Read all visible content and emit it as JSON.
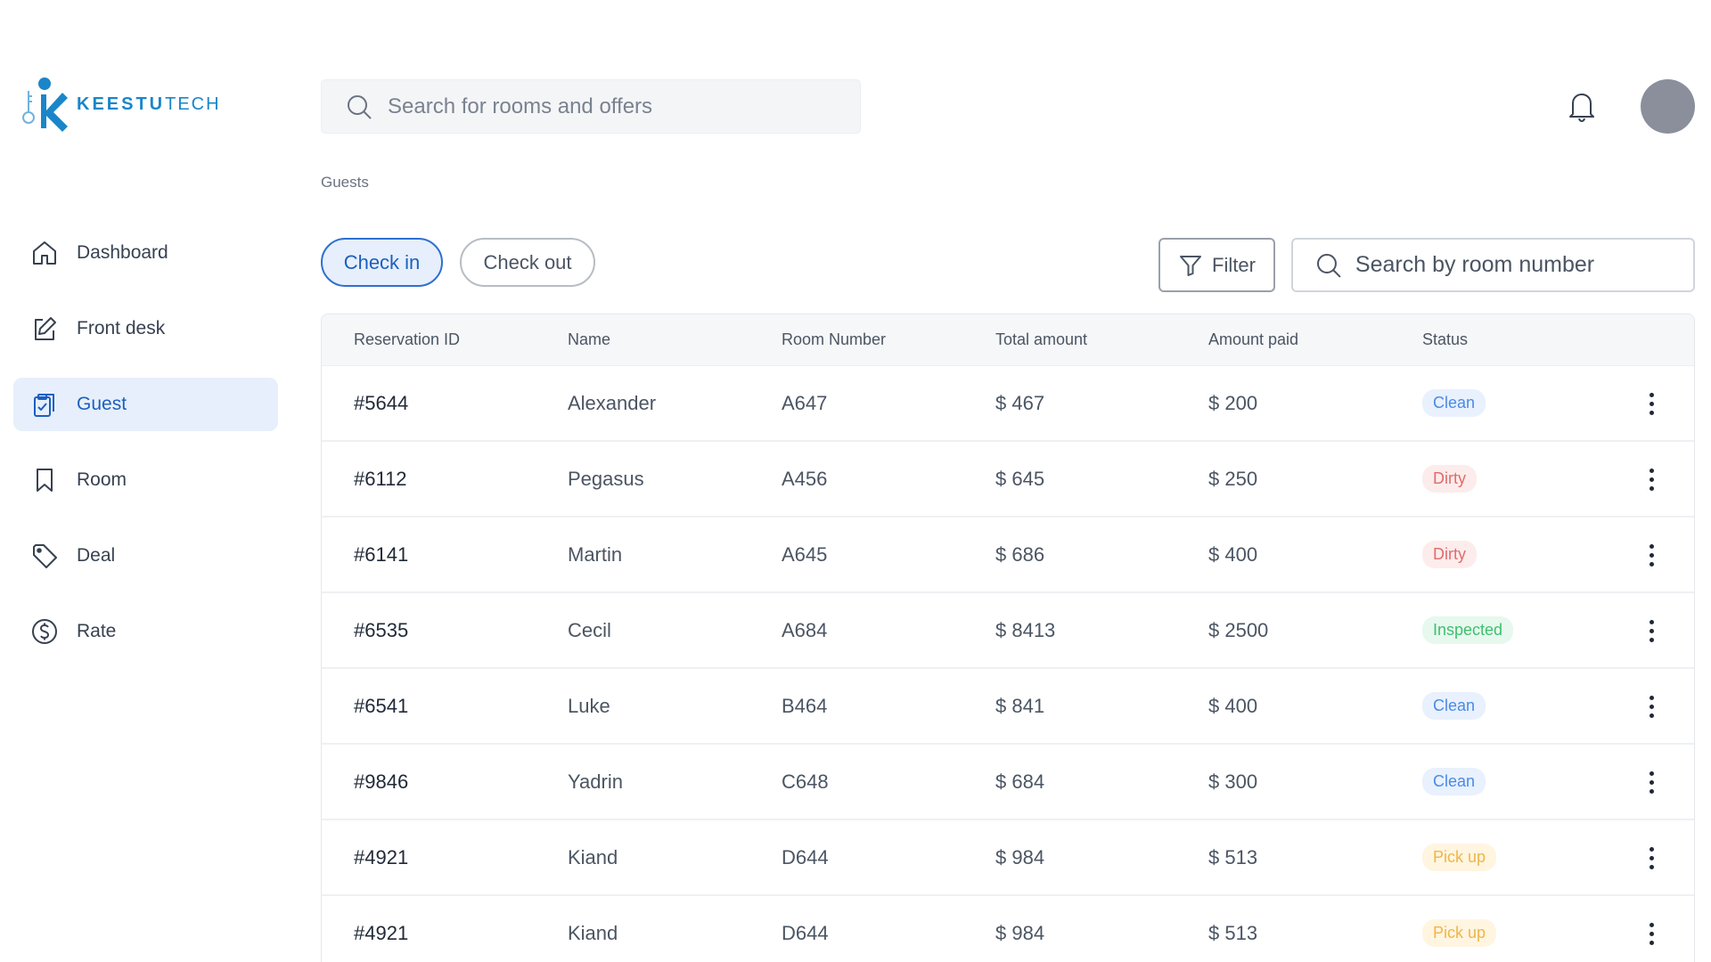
{
  "brand": {
    "name_bold": "KEESTU",
    "name_light": "TECH"
  },
  "sidebar": {
    "items": [
      {
        "label": "Dashboard",
        "icon": "home-icon",
        "active": false
      },
      {
        "label": "Front desk",
        "icon": "edit-icon",
        "active": false
      },
      {
        "label": "Guest",
        "icon": "clipboard-check-icon",
        "active": true
      },
      {
        "label": "Room",
        "icon": "bookmark-icon",
        "active": false
      },
      {
        "label": "Deal",
        "icon": "tag-icon",
        "active": false
      },
      {
        "label": "Rate",
        "icon": "dollar-circle-icon",
        "active": false
      }
    ]
  },
  "header": {
    "search_placeholder": "Search for rooms and offers",
    "notification_icon": "bell-icon"
  },
  "breadcrumb": "Guests",
  "toolbar": {
    "tabs": [
      {
        "label": "Check in",
        "active": true
      },
      {
        "label": "Check out",
        "active": false
      }
    ],
    "filter_label": "Filter",
    "room_search_placeholder": "Search by room number"
  },
  "table": {
    "columns": [
      "Reservation ID",
      "Name",
      "Room Number",
      "Total amount",
      "Amount paid",
      "Status"
    ],
    "rows": [
      {
        "id": "#5644",
        "name": "Alexander",
        "room": "A647",
        "total": "$ 467",
        "paid": "$ 200",
        "status": "Clean"
      },
      {
        "id": "#6112",
        "name": "Pegasus",
        "room": "A456",
        "total": "$ 645",
        "paid": "$ 250",
        "status": "Dirty"
      },
      {
        "id": "#6141",
        "name": "Martin",
        "room": "A645",
        "total": "$ 686",
        "paid": "$ 400",
        "status": "Dirty"
      },
      {
        "id": "#6535",
        "name": "Cecil",
        "room": "A684",
        "total": "$ 8413",
        "paid": "$ 2500",
        "status": "Inspected"
      },
      {
        "id": "#6541",
        "name": "Luke",
        "room": "B464",
        "total": "$ 841",
        "paid": "$ 400",
        "status": "Clean"
      },
      {
        "id": "#9846",
        "name": "Yadrin",
        "room": "C648",
        "total": "$ 684",
        "paid": "$ 300",
        "status": "Clean"
      },
      {
        "id": "#4921",
        "name": "Kiand",
        "room": "D644",
        "total": "$ 984",
        "paid": "$ 513",
        "status": "Pick up"
      },
      {
        "id": "#4921",
        "name": "Kiand",
        "room": "D644",
        "total": "$ 984",
        "paid": "$ 513",
        "status": "Pick up"
      }
    ]
  },
  "status_styles": {
    "Clean": {
      "bg": "#e8f1fd",
      "fg": "#4a8ae6"
    },
    "Dirty": {
      "bg": "#fdecec",
      "fg": "#e26b6b"
    },
    "Inspected": {
      "bg": "#e7f8ee",
      "fg": "#3fbf6e"
    },
    "Pick up": {
      "bg": "#fff5e0",
      "fg": "#f1b545"
    }
  },
  "colors": {
    "accent": "#1d5fbf",
    "brand": "#1a86c9",
    "active_bg": "#e6effb"
  }
}
